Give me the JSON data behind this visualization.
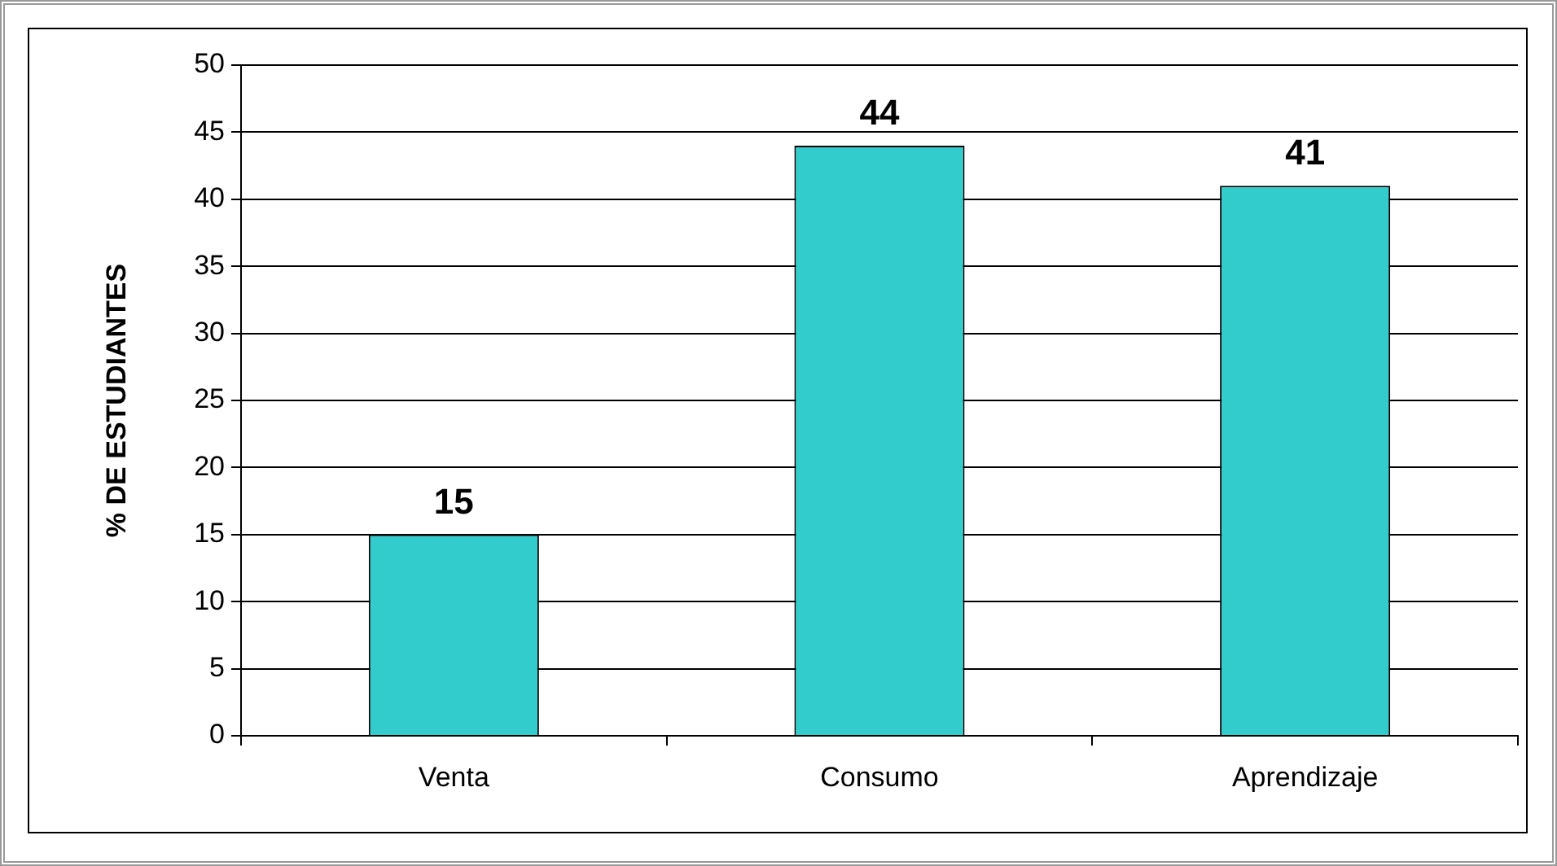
{
  "chart_data": {
    "type": "bar",
    "ylabel": "% DE ESTUDIANTES",
    "categories": [
      "Venta",
      "Consumo",
      "Aprendizaje"
    ],
    "values": [
      15,
      44,
      41
    ],
    "color": "#33cccc",
    "ylim": [
      0,
      50
    ],
    "yticks": [
      0,
      5,
      10,
      15,
      20,
      25,
      30,
      35,
      40,
      45,
      50
    ],
    "grid": "y",
    "legend": false,
    "data_labels": true
  }
}
